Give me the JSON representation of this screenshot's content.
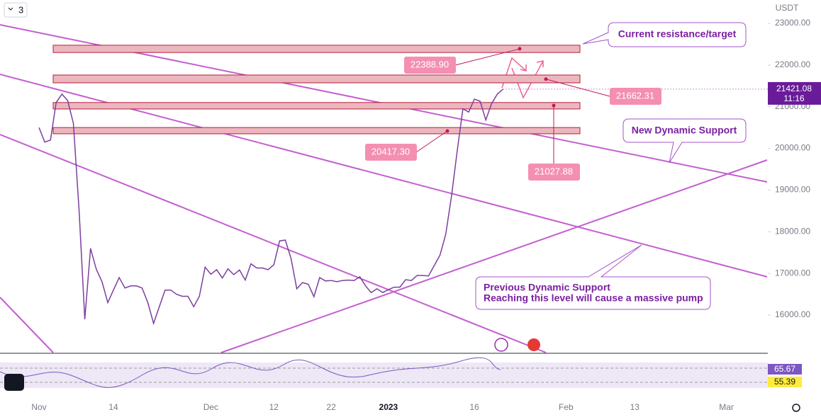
{
  "toolbar": {
    "interval": 3,
    "currency": "USDT",
    "countdown": "11:16"
  },
  "chart_data": {
    "type": "line",
    "color": "#7b3fa0",
    "categories": [
      "Nov",
      null,
      null,
      null,
      null,
      null,
      null,
      null,
      null,
      null,
      null,
      null,
      null,
      "14",
      null,
      null,
      null,
      null,
      null,
      null,
      null,
      null,
      null,
      null,
      null,
      null,
      null,
      null,
      null,
      null,
      "Dec",
      null,
      null,
      null,
      null,
      null,
      null,
      null,
      null,
      null,
      null,
      "12",
      null,
      null,
      null,
      null,
      null,
      null,
      null,
      null,
      null,
      "22",
      null,
      null,
      null,
      null,
      null,
      null,
      null,
      null,
      null,
      "2023",
      null,
      null,
      null,
      null,
      null,
      null,
      null,
      null,
      null,
      null,
      null,
      null,
      null,
      null,
      "16",
      null,
      null,
      null,
      null,
      null,
      null,
      null,
      null,
      null,
      null,
      null,
      null,
      null,
      null,
      null,
      "Feb",
      null,
      null,
      null,
      null,
      null,
      null,
      null,
      null,
      null,
      null,
      null,
      "13",
      null,
      null,
      null,
      null,
      null,
      null,
      null,
      null,
      null,
      null,
      null,
      null,
      null,
      null,
      null,
      "Mar"
    ],
    "values": [
      20500,
      20150,
      20200,
      21100,
      21300,
      21150,
      20600,
      18500,
      15900,
      17600,
      17100,
      16800,
      16300,
      16600,
      16900,
      16650,
      16700,
      16700,
      16650,
      16300,
      15800,
      16200,
      16600,
      16600,
      16500,
      16450,
      16450,
      16200,
      16450,
      17150,
      16980,
      17090,
      16890,
      17110,
      16970,
      17080,
      16840,
      17230,
      17130,
      17130,
      17090,
      17210,
      17780,
      17800,
      17360,
      16630,
      16780,
      16740,
      16440,
      16900,
      16820,
      16830,
      16800,
      16830,
      16840,
      16830,
      16920,
      16700,
      16540,
      16630,
      16540,
      16610,
      16670,
      16670,
      16850,
      16830,
      16950,
      16950,
      16940,
      17190,
      17440,
      17940,
      18850,
      19930,
      20950,
      20870,
      21180,
      21130,
      20680,
      21070,
      21300,
      21421.08,
      null,
      null,
      null,
      null,
      null,
      null,
      null,
      null,
      null,
      null,
      null,
      null,
      null,
      null,
      null,
      null,
      null,
      null,
      null,
      null,
      null,
      null,
      null,
      null,
      null,
      null,
      null,
      null,
      null,
      null,
      null,
      null,
      null,
      null,
      null,
      null,
      null,
      null,
      null
    ],
    "ylim": [
      15100,
      23560
    ],
    "yticks": [
      {
        "value": 16000,
        "label": "16000.00"
      },
      {
        "value": 17000,
        "label": "17000.00"
      },
      {
        "value": 18000,
        "label": "18000.00"
      },
      {
        "value": 19000,
        "label": "19000.00"
      },
      {
        "value": 20000,
        "label": "20000.00"
      },
      {
        "value": 21000,
        "label": "21000.00"
      },
      {
        "value": 22000,
        "label": "22000.00"
      },
      {
        "value": 23000,
        "label": "23000.00"
      }
    ],
    "zones": [
      [
        22300,
        22475
      ],
      [
        21573,
        21760
      ],
      [
        20945,
        21100
      ],
      [
        20350,
        20500
      ]
    ],
    "price_marks": [
      {
        "value": 22388.9,
        "label": "22388.90"
      },
      {
        "value": 21662.31,
        "label": "21662.31"
      },
      {
        "value": 21027.88,
        "label": "21027.88"
      },
      {
        "value": 20417.3,
        "label": "20417.30"
      }
    ],
    "annotations": [
      "Current resistance/target",
      "New Dynamic Support",
      "Previous Dynamic Support",
      "Reaching this level will cause a massive pump"
    ]
  },
  "indicator": {
    "values": [
      65.67,
      55.39
    ]
  }
}
